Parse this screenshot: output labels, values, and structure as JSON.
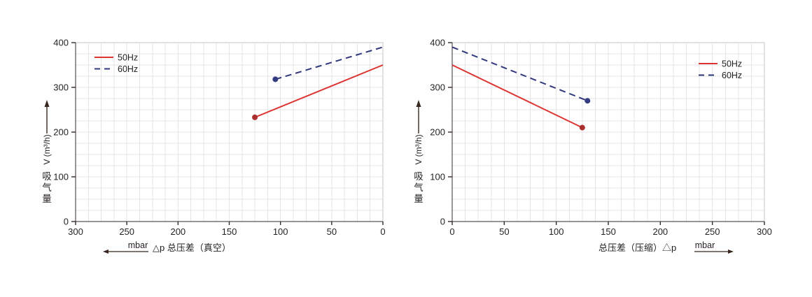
{
  "page": {
    "background": "#ffffff"
  },
  "colors": {
    "red": "#dc3431",
    "blue": "#31397d",
    "red_marker": "#aa2f31",
    "blue_marker": "#333c80",
    "grid": "#e4e4e4",
    "plot_border": "#c6c6c6",
    "axis": "#332a2b",
    "text": "#231f20",
    "arrow": "#38281f"
  },
  "chart_data": [
    {
      "key": "vacuum",
      "type": "line",
      "title": "",
      "ylabel": {
        "cjk": "吸气量",
        "latin": "V (m³/h)",
        "arrow": "up"
      },
      "xlabel": {
        "text": "△p 总压差（真空）",
        "unit": "mbar",
        "arrow": "left"
      },
      "xlim": [
        0,
        300
      ],
      "x_reversed": true,
      "ylim": [
        0,
        400
      ],
      "x_ticks": [
        300,
        250,
        200,
        150,
        100,
        50,
        0
      ],
      "y_ticks": [
        0,
        100,
        200,
        300,
        400
      ],
      "grid": {
        "on": true,
        "minor_x": 12.5,
        "minor_y": 25
      },
      "legend": {
        "position": "top-left",
        "entries": [
          "50Hz",
          "60Hz"
        ]
      },
      "series": [
        {
          "name": "50Hz",
          "style": "solid",
          "color_key": "red",
          "points": [
            [
              125,
              233
            ],
            [
              0,
              350
            ]
          ],
          "marker": [
            125,
            233
          ]
        },
        {
          "name": "60Hz",
          "style": "dashed",
          "color_key": "blue",
          "points": [
            [
              105,
              318
            ],
            [
              0,
              390
            ]
          ],
          "marker": [
            105,
            318
          ]
        }
      ]
    },
    {
      "key": "compression",
      "type": "line",
      "title": "",
      "ylabel": {
        "cjk": "吸气量",
        "latin": "V (m³/h)",
        "arrow": "up"
      },
      "xlabel": {
        "text": "总压差（压缩）△p",
        "unit": "mbar",
        "arrow": "right"
      },
      "xlim": [
        0,
        300
      ],
      "x_reversed": false,
      "ylim": [
        0,
        400
      ],
      "x_ticks": [
        0,
        50,
        100,
        150,
        200,
        250,
        300
      ],
      "y_ticks": [
        0,
        100,
        200,
        300,
        400
      ],
      "grid": {
        "on": true,
        "minor_x": 12.5,
        "minor_y": 25
      },
      "legend": {
        "position": "top-right",
        "entries": [
          "50Hz",
          "60Hz"
        ]
      },
      "series": [
        {
          "name": "50Hz",
          "style": "solid",
          "color_key": "red",
          "points": [
            [
              0,
              350
            ],
            [
              125,
              210
            ]
          ],
          "marker": [
            125,
            210
          ]
        },
        {
          "name": "60Hz",
          "style": "dashed",
          "color_key": "blue",
          "points": [
            [
              0,
              390
            ],
            [
              130,
              270
            ]
          ],
          "marker": [
            130,
            270
          ]
        }
      ]
    }
  ]
}
